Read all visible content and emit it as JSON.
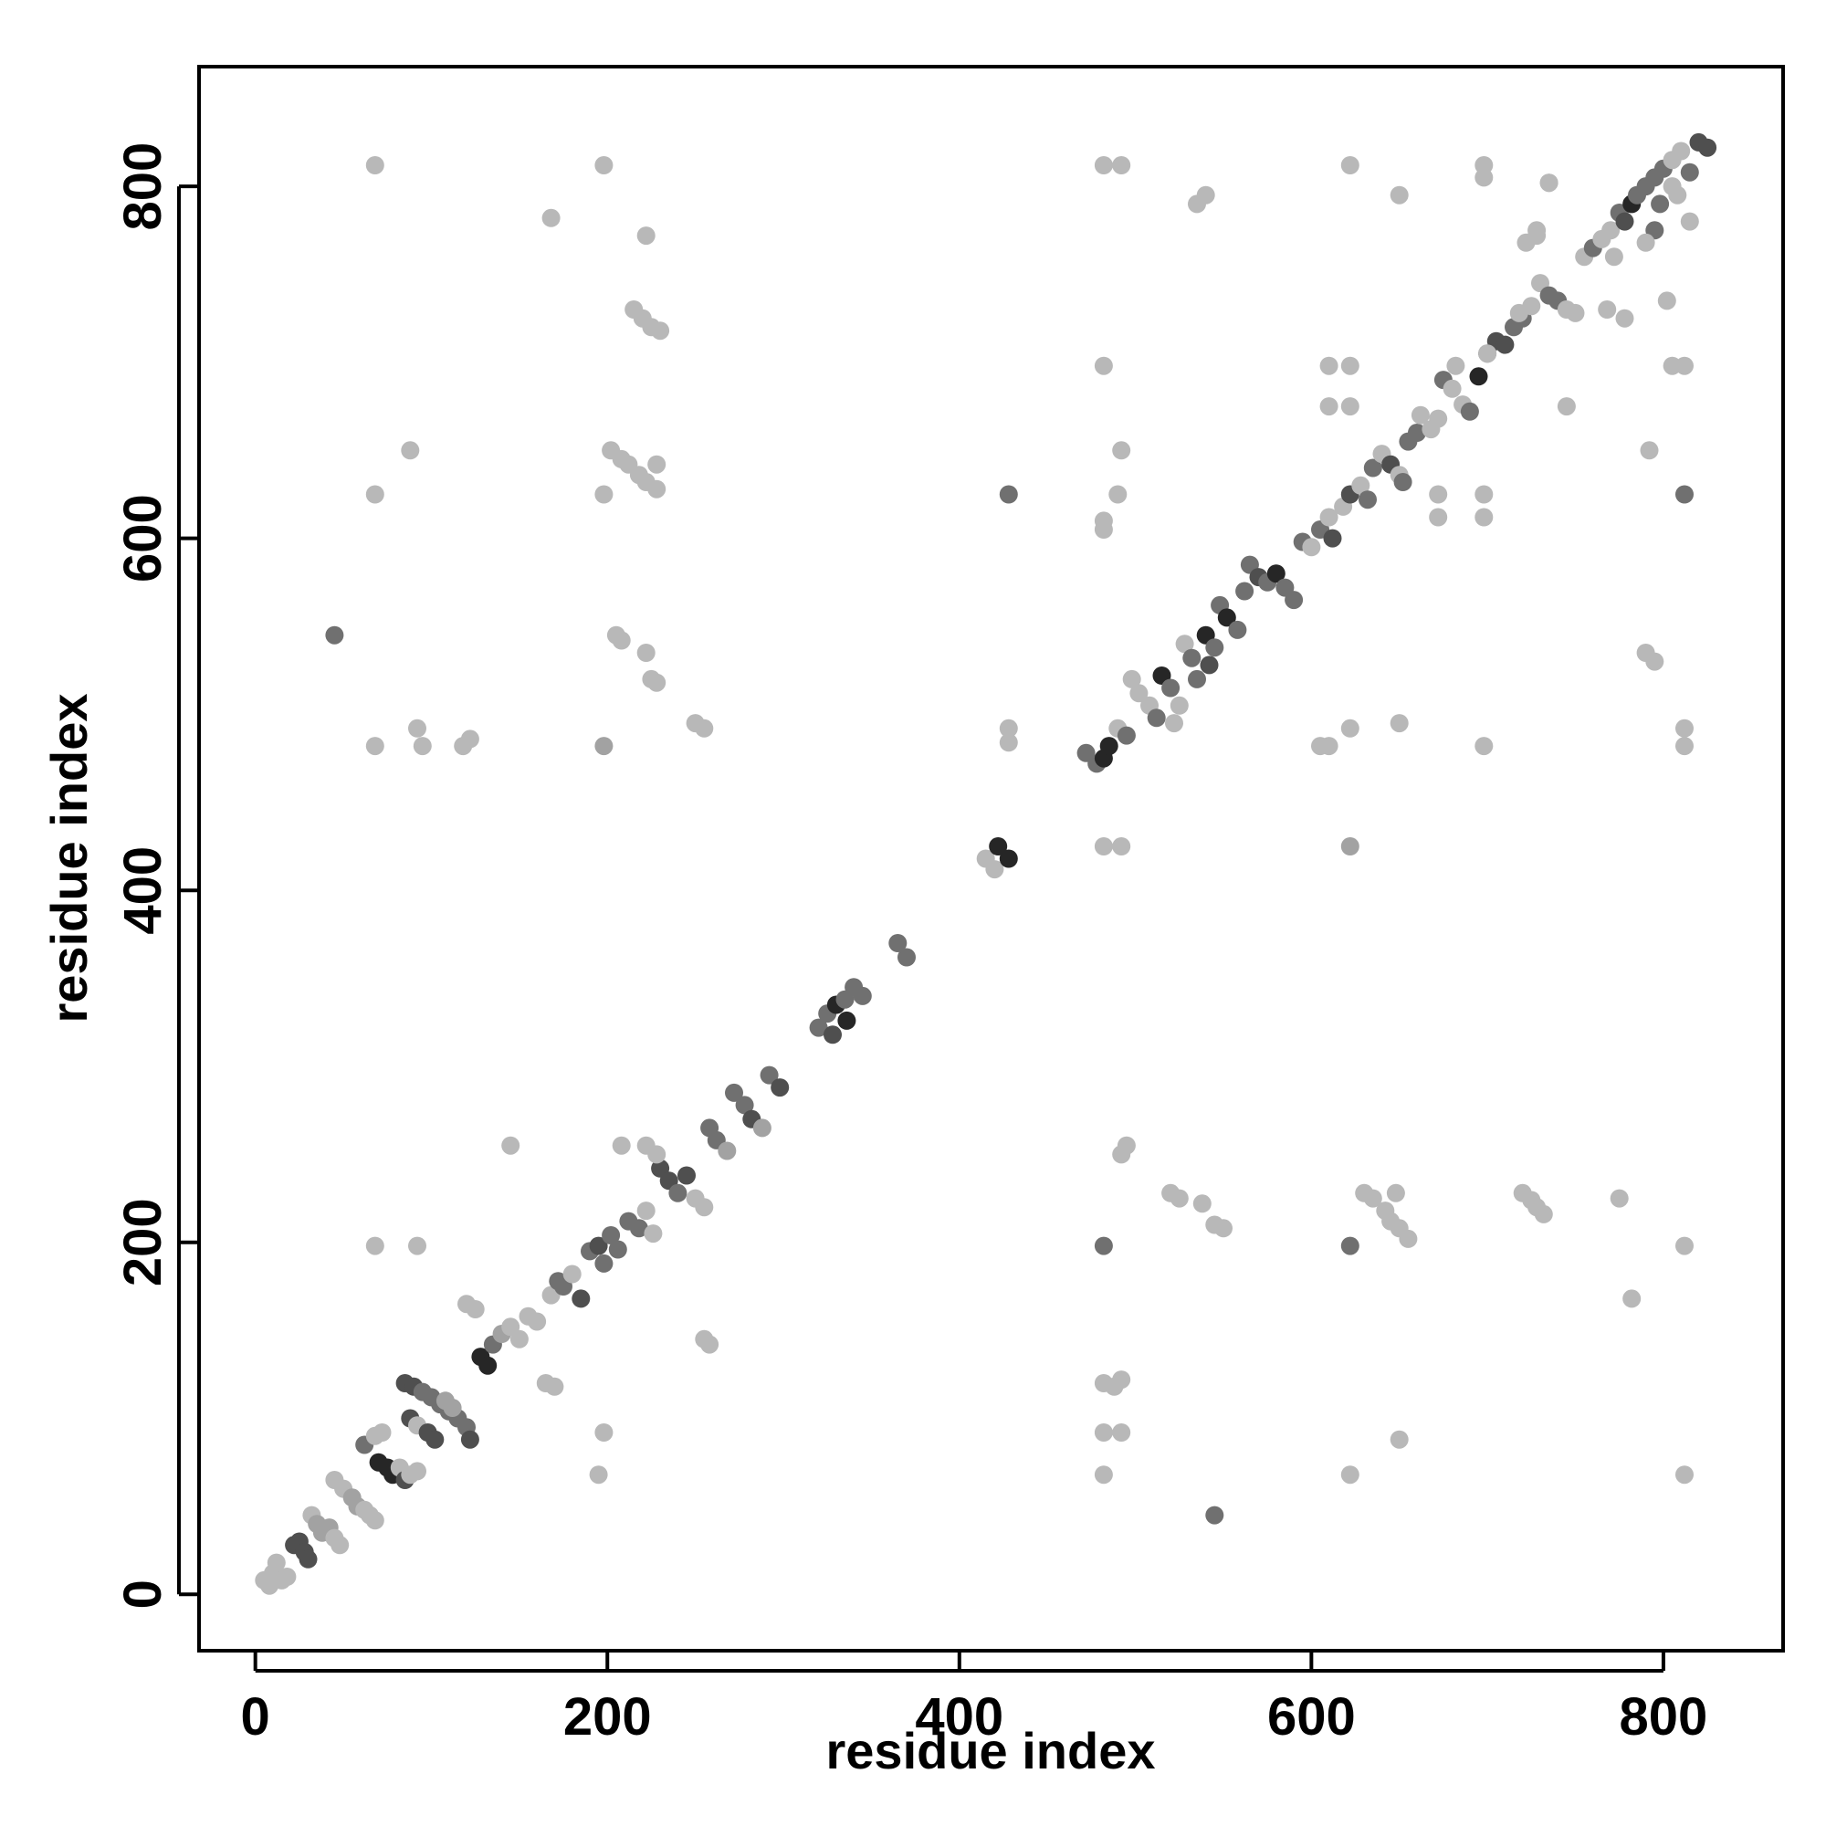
{
  "chart_data": {
    "type": "scatter",
    "title": "",
    "xlabel": "residue index",
    "ylabel": "residue index",
    "xlim": [
      -32,
      868
    ],
    "ylim": [
      -32,
      868
    ],
    "xticks": [
      0,
      200,
      400,
      600,
      800
    ],
    "yticks": [
      0,
      200,
      400,
      600,
      800
    ],
    "xtick_labels": [
      "0",
      "200",
      "400",
      "600",
      "800"
    ],
    "ytick_labels": [
      "0",
      "200",
      "400",
      "600",
      "800"
    ],
    "grid": false,
    "legend": "none",
    "colors": {
      "light": "#b8b8b8",
      "mid": "#a2a2a2",
      "dark": "#707070",
      "darker": "#4f4f4f",
      "darkest": "#262626"
    },
    "points": [
      [
        5,
        8,
        "light"
      ],
      [
        8,
        5,
        "light"
      ],
      [
        10,
        12,
        "light"
      ],
      [
        12,
        18,
        "light"
      ],
      [
        15,
        8,
        "light"
      ],
      [
        18,
        10,
        "light"
      ],
      [
        22,
        28,
        "darker"
      ],
      [
        25,
        30,
        "darker"
      ],
      [
        28,
        24,
        "darker"
      ],
      [
        30,
        20,
        "darker"
      ],
      [
        32,
        45,
        "light"
      ],
      [
        35,
        40,
        "mid"
      ],
      [
        38,
        35,
        "mid"
      ],
      [
        42,
        38,
        "mid"
      ],
      [
        45,
        32,
        "light"
      ],
      [
        48,
        28,
        "light"
      ],
      [
        45,
        65,
        "light"
      ],
      [
        50,
        60,
        "light"
      ],
      [
        55,
        55,
        "mid"
      ],
      [
        58,
        50,
        "mid"
      ],
      [
        62,
        48,
        "light"
      ],
      [
        65,
        45,
        "light"
      ],
      [
        68,
        42,
        "light"
      ],
      [
        62,
        85,
        "dark"
      ],
      [
        68,
        90,
        "light"
      ],
      [
        72,
        92,
        "light"
      ],
      [
        70,
        75,
        "darkest"
      ],
      [
        75,
        72,
        "darkest"
      ],
      [
        78,
        68,
        "darkest"
      ],
      [
        82,
        72,
        "light"
      ],
      [
        85,
        65,
        "darker"
      ],
      [
        88,
        68,
        "light"
      ],
      [
        92,
        70,
        "light"
      ],
      [
        85,
        120,
        "darker"
      ],
      [
        90,
        118,
        "darker"
      ],
      [
        95,
        115,
        "dark"
      ],
      [
        100,
        112,
        "dark"
      ],
      [
        105,
        108,
        "dark"
      ],
      [
        110,
        104,
        "dark"
      ],
      [
        115,
        100,
        "dark"
      ],
      [
        120,
        95,
        "dark"
      ],
      [
        122,
        88,
        "darker"
      ],
      [
        88,
        100,
        "darker"
      ],
      [
        92,
        96,
        "light"
      ],
      [
        98,
        92,
        "darker"
      ],
      [
        102,
        88,
        "darker"
      ],
      [
        108,
        110,
        "mid"
      ],
      [
        112,
        106,
        "mid"
      ],
      [
        120,
        165,
        "light"
      ],
      [
        125,
        162,
        "light"
      ],
      [
        128,
        135,
        "darkest"
      ],
      [
        132,
        130,
        "darkest"
      ],
      [
        135,
        142,
        "dark"
      ],
      [
        140,
        148,
        "mid"
      ],
      [
        145,
        152,
        "light"
      ],
      [
        150,
        145,
        "light"
      ],
      [
        155,
        158,
        "light"
      ],
      [
        160,
        155,
        "light"
      ],
      [
        168,
        170,
        "light"
      ],
      [
        172,
        178,
        "dark"
      ],
      [
        175,
        175,
        "dark"
      ],
      [
        180,
        182,
        "light"
      ],
      [
        185,
        168,
        "darker"
      ],
      [
        190,
        195,
        "dark"
      ],
      [
        195,
        198,
        "darker"
      ],
      [
        198,
        188,
        "dark"
      ],
      [
        202,
        204,
        "dark"
      ],
      [
        206,
        196,
        "dark"
      ],
      [
        212,
        212,
        "dark"
      ],
      [
        218,
        208,
        "dark"
      ],
      [
        222,
        218,
        "light"
      ],
      [
        226,
        205,
        "light"
      ],
      [
        230,
        242,
        "darker"
      ],
      [
        235,
        235,
        "darker"
      ],
      [
        240,
        228,
        "dark"
      ],
      [
        245,
        238,
        "darker"
      ],
      [
        250,
        225,
        "light"
      ],
      [
        255,
        220,
        "light"
      ],
      [
        258,
        265,
        "dark"
      ],
      [
        262,
        258,
        "dark"
      ],
      [
        268,
        252,
        "mid"
      ],
      [
        272,
        285,
        "dark"
      ],
      [
        278,
        278,
        "dark"
      ],
      [
        282,
        270,
        "darker"
      ],
      [
        288,
        265,
        "mid"
      ],
      [
        292,
        295,
        "dark"
      ],
      [
        298,
        288,
        "darker"
      ],
      [
        320,
        322,
        "dark"
      ],
      [
        325,
        330,
        "dark"
      ],
      [
        330,
        335,
        "darkest"
      ],
      [
        335,
        338,
        "dark"
      ],
      [
        340,
        345,
        "dark"
      ],
      [
        345,
        340,
        "dark"
      ],
      [
        328,
        318,
        "darker"
      ],
      [
        336,
        326,
        "darkest"
      ],
      [
        365,
        370,
        "dark"
      ],
      [
        370,
        362,
        "dark"
      ],
      [
        415,
        418,
        "light"
      ],
      [
        420,
        412,
        "light"
      ],
      [
        422,
        425,
        "darkest"
      ],
      [
        428,
        418,
        "darkest"
      ],
      [
        472,
        478,
        "dark"
      ],
      [
        478,
        472,
        "dark"
      ],
      [
        482,
        475,
        "darkest"
      ],
      [
        485,
        482,
        "darkest"
      ],
      [
        490,
        492,
        "light"
      ],
      [
        495,
        488,
        "dark"
      ],
      [
        498,
        520,
        "light"
      ],
      [
        502,
        512,
        "light"
      ],
      [
        508,
        505,
        "light"
      ],
      [
        512,
        498,
        "dark"
      ],
      [
        515,
        522,
        "darkest"
      ],
      [
        520,
        515,
        "dark"
      ],
      [
        522,
        495,
        "light"
      ],
      [
        525,
        505,
        "light"
      ],
      [
        528,
        540,
        "light"
      ],
      [
        532,
        532,
        "dark"
      ],
      [
        535,
        520,
        "dark"
      ],
      [
        540,
        545,
        "darkest"
      ],
      [
        542,
        528,
        "darker"
      ],
      [
        545,
        538,
        "dark"
      ],
      [
        548,
        562,
        "dark"
      ],
      [
        552,
        555,
        "darkest"
      ],
      [
        558,
        548,
        "dark"
      ],
      [
        562,
        570,
        "dark"
      ],
      [
        565,
        585,
        "dark"
      ],
      [
        570,
        578,
        "darker"
      ],
      [
        575,
        575,
        "dark"
      ],
      [
        580,
        580,
        "darkest"
      ],
      [
        585,
        572,
        "dark"
      ],
      [
        590,
        565,
        "dark"
      ],
      [
        595,
        598,
        "dark"
      ],
      [
        600,
        595,
        "light"
      ],
      [
        605,
        605,
        "dark"
      ],
      [
        610,
        612,
        "light"
      ],
      [
        612,
        600,
        "darker"
      ],
      [
        618,
        618,
        "light"
      ],
      [
        622,
        625,
        "darker"
      ],
      [
        628,
        630,
        "light"
      ],
      [
        632,
        622,
        "dark"
      ],
      [
        635,
        640,
        "dark"
      ],
      [
        640,
        648,
        "light"
      ],
      [
        645,
        642,
        "darker"
      ],
      [
        650,
        636,
        "light"
      ],
      [
        652,
        632,
        "dark"
      ],
      [
        655,
        655,
        "dark"
      ],
      [
        660,
        660,
        "dark"
      ],
      [
        662,
        670,
        "light"
      ],
      [
        668,
        662,
        "light"
      ],
      [
        672,
        668,
        "light"
      ],
      [
        675,
        690,
        "dark"
      ],
      [
        680,
        685,
        "light"
      ],
      [
        682,
        698,
        "light"
      ],
      [
        686,
        676,
        "light"
      ],
      [
        690,
        672,
        "dark"
      ],
      [
        695,
        692,
        "darkest"
      ],
      [
        700,
        705,
        "dark"
      ],
      [
        705,
        712,
        "darker"
      ],
      [
        710,
        710,
        "darker"
      ],
      [
        715,
        720,
        "dark"
      ],
      [
        720,
        725,
        "dark"
      ],
      [
        725,
        732,
        "light"
      ],
      [
        730,
        745,
        "light"
      ],
      [
        735,
        738,
        "dark"
      ],
      [
        740,
        735,
        "dark"
      ],
      [
        745,
        730,
        "light"
      ],
      [
        750,
        728,
        "light"
      ],
      [
        755,
        760,
        "light"
      ],
      [
        760,
        765,
        "dark"
      ],
      [
        765,
        770,
        "light"
      ],
      [
        770,
        775,
        "light"
      ],
      [
        772,
        760,
        "light"
      ],
      [
        775,
        785,
        "dark"
      ],
      [
        778,
        780,
        "darker"
      ],
      [
        782,
        790,
        "darkest"
      ],
      [
        785,
        795,
        "dark"
      ],
      [
        790,
        800,
        "dark"
      ],
      [
        795,
        805,
        "dark"
      ],
      [
        798,
        790,
        "dark"
      ],
      [
        800,
        810,
        "dark"
      ],
      [
        805,
        815,
        "light"
      ],
      [
        810,
        820,
        "light"
      ],
      [
        815,
        808,
        "dark"
      ],
      [
        820,
        825,
        "darker"
      ],
      [
        825,
        822,
        "darker"
      ],
      [
        815,
        780,
        "light"
      ],
      [
        808,
        795,
        "light"
      ],
      [
        795,
        775,
        "dark"
      ],
      [
        790,
        768,
        "light"
      ],
      [
        805,
        800,
        "light"
      ],
      [
        728,
        772,
        "light"
      ],
      [
        722,
        768,
        "light"
      ],
      [
        728,
        775,
        "light"
      ],
      [
        735,
        802,
        "light"
      ],
      [
        768,
        730,
        "light"
      ],
      [
        778,
        725,
        "light"
      ],
      [
        700,
        705,
        "light"
      ],
      [
        718,
        728,
        "light"
      ],
      [
        68,
        812,
        "light"
      ],
      [
        198,
        812,
        "light"
      ],
      [
        168,
        782,
        "light"
      ],
      [
        222,
        772,
        "light"
      ],
      [
        215,
        730,
        "light"
      ],
      [
        220,
        725,
        "light"
      ],
      [
        225,
        720,
        "light"
      ],
      [
        230,
        718,
        "light"
      ],
      [
        88,
        650,
        "light"
      ],
      [
        68,
        625,
        "light"
      ],
      [
        198,
        625,
        "light"
      ],
      [
        202,
        650,
        "light"
      ],
      [
        208,
        645,
        "light"
      ],
      [
        212,
        642,
        "light"
      ],
      [
        218,
        636,
        "light"
      ],
      [
        222,
        632,
        "light"
      ],
      [
        228,
        628,
        "light"
      ],
      [
        228,
        642,
        "light"
      ],
      [
        45,
        545,
        "dark"
      ],
      [
        205,
        545,
        "light"
      ],
      [
        208,
        542,
        "light"
      ],
      [
        222,
        535,
        "light"
      ],
      [
        225,
        520,
        "light"
      ],
      [
        228,
        518,
        "light"
      ],
      [
        250,
        495,
        "light"
      ],
      [
        255,
        492,
        "light"
      ],
      [
        68,
        482,
        "light"
      ],
      [
        92,
        492,
        "light"
      ],
      [
        95,
        482,
        "light"
      ],
      [
        118,
        482,
        "light"
      ],
      [
        122,
        486,
        "light"
      ],
      [
        198,
        482,
        "mid"
      ],
      [
        428,
        625,
        "dark"
      ],
      [
        428,
        492,
        "light"
      ],
      [
        428,
        484,
        "light"
      ],
      [
        482,
        812,
        "light"
      ],
      [
        492,
        812,
        "light"
      ],
      [
        535,
        790,
        "light"
      ],
      [
        540,
        795,
        "light"
      ],
      [
        622,
        812,
        "light"
      ],
      [
        650,
        795,
        "light"
      ],
      [
        698,
        812,
        "light"
      ],
      [
        698,
        805,
        "light"
      ],
      [
        735,
        802,
        "light"
      ],
      [
        482,
        698,
        "light"
      ],
      [
        492,
        650,
        "light"
      ],
      [
        490,
        625,
        "light"
      ],
      [
        482,
        610,
        "light"
      ],
      [
        482,
        605,
        "light"
      ],
      [
        610,
        698,
        "light"
      ],
      [
        622,
        698,
        "light"
      ],
      [
        610,
        675,
        "light"
      ],
      [
        622,
        675,
        "light"
      ],
      [
        672,
        625,
        "light"
      ],
      [
        698,
        625,
        "light"
      ],
      [
        672,
        612,
        "light"
      ],
      [
        698,
        612,
        "light"
      ],
      [
        812,
        698,
        "light"
      ],
      [
        805,
        698,
        "light"
      ],
      [
        745,
        675,
        "light"
      ],
      [
        792,
        650,
        "light"
      ],
      [
        812,
        625,
        "dark"
      ],
      [
        790,
        535,
        "light"
      ],
      [
        795,
        530,
        "light"
      ],
      [
        812,
        492,
        "light"
      ],
      [
        812,
        482,
        "light"
      ],
      [
        610,
        482,
        "light"
      ],
      [
        605,
        482,
        "light"
      ],
      [
        622,
        492,
        "light"
      ],
      [
        650,
        495,
        "light"
      ],
      [
        698,
        482,
        "light"
      ],
      [
        802,
        735,
        "light"
      ],
      [
        775,
        225,
        "light"
      ],
      [
        482,
        425,
        "light"
      ],
      [
        492,
        425,
        "light"
      ],
      [
        622,
        425,
        "mid"
      ],
      [
        492,
        250,
        "light"
      ],
      [
        495,
        255,
        "light"
      ],
      [
        520,
        228,
        "light"
      ],
      [
        525,
        225,
        "light"
      ],
      [
        538,
        222,
        "light"
      ],
      [
        545,
        210,
        "light"
      ],
      [
        550,
        208,
        "light"
      ],
      [
        630,
        228,
        "light"
      ],
      [
        635,
        225,
        "light"
      ],
      [
        642,
        218,
        "light"
      ],
      [
        648,
        228,
        "light"
      ],
      [
        645,
        212,
        "light"
      ],
      [
        650,
        208,
        "light"
      ],
      [
        655,
        202,
        "light"
      ],
      [
        720,
        228,
        "light"
      ],
      [
        725,
        224,
        "light"
      ],
      [
        728,
        220,
        "light"
      ],
      [
        732,
        216,
        "light"
      ],
      [
        482,
        198,
        "dark"
      ],
      [
        622,
        198,
        "dark"
      ],
      [
        812,
        198,
        "light"
      ],
      [
        782,
        168,
        "light"
      ],
      [
        482,
        120,
        "light"
      ],
      [
        488,
        118,
        "light"
      ],
      [
        492,
        122,
        "light"
      ],
      [
        482,
        92,
        "light"
      ],
      [
        492,
        92,
        "light"
      ],
      [
        650,
        88,
        "light"
      ],
      [
        482,
        68,
        "light"
      ],
      [
        622,
        68,
        "light"
      ],
      [
        812,
        68,
        "light"
      ],
      [
        545,
        45,
        "dark"
      ],
      [
        68,
        198,
        "light"
      ],
      [
        92,
        198,
        "light"
      ],
      [
        145,
        255,
        "light"
      ],
      [
        208,
        255,
        "light"
      ],
      [
        222,
        255,
        "light"
      ],
      [
        228,
        250,
        "light"
      ],
      [
        195,
        68,
        "light"
      ],
      [
        198,
        92,
        "light"
      ],
      [
        165,
        120,
        "light"
      ],
      [
        170,
        118,
        "light"
      ],
      [
        255,
        145,
        "light"
      ],
      [
        258,
        142,
        "light"
      ]
    ]
  }
}
